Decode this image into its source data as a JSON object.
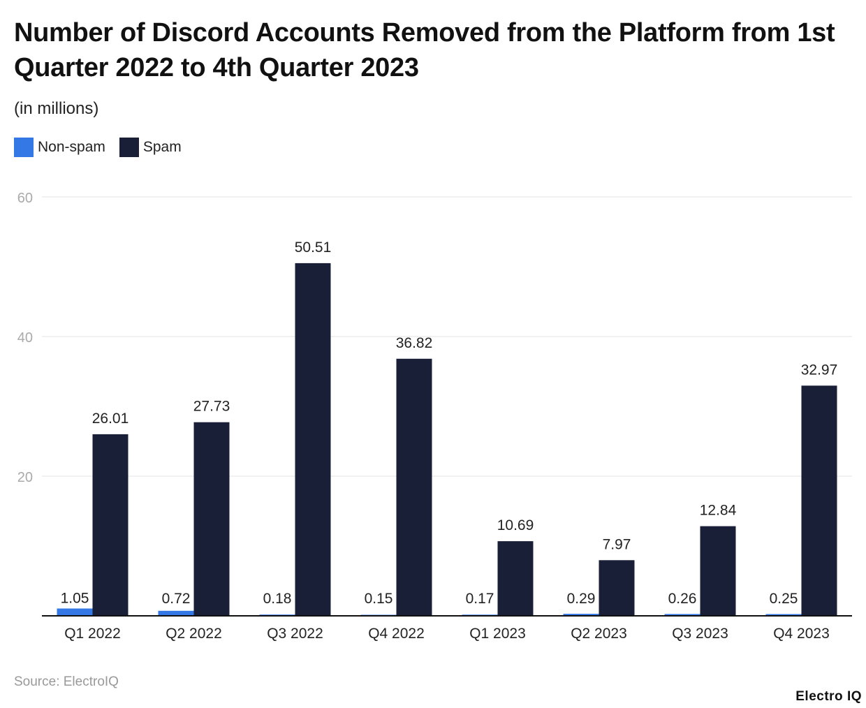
{
  "chart_data": {
    "type": "bar",
    "title": "Number of Discord Accounts Removed from the Platform from 1st Quarter 2022 to 4th Quarter 2023",
    "subtitle": "(in millions)",
    "categories": [
      "Q1 2022",
      "Q2 2022",
      "Q3 2022",
      "Q4 2022",
      "Q1 2023",
      "Q2 2023",
      "Q3 2023",
      "Q4 2023"
    ],
    "series": [
      {
        "name": "Non-spam",
        "color": "#3478e6",
        "values": [
          1.05,
          0.72,
          0.18,
          0.15,
          0.17,
          0.29,
          0.26,
          0.25
        ],
        "labels": [
          "1.05",
          "0.72",
          "0.18",
          "0.15",
          "0.17",
          "0.29",
          "0.26",
          "0.25"
        ]
      },
      {
        "name": "Spam",
        "color": "#1a1f38",
        "values": [
          26.01,
          27.73,
          50.51,
          36.82,
          10.69,
          7.97,
          12.84,
          32.97
        ],
        "labels": [
          "26.01",
          "27.73",
          "50.51",
          "36.82",
          "10.69",
          "7.97",
          "12.84",
          "32.97"
        ]
      }
    ],
    "ylim": [
      0,
      60
    ],
    "yticks": [
      "20",
      "40",
      "60"
    ],
    "grid": true,
    "legend": "top-left",
    "xlabel": "",
    "ylabel": ""
  },
  "source": "Source: ElectroIQ",
  "logo": "Electro IQ"
}
